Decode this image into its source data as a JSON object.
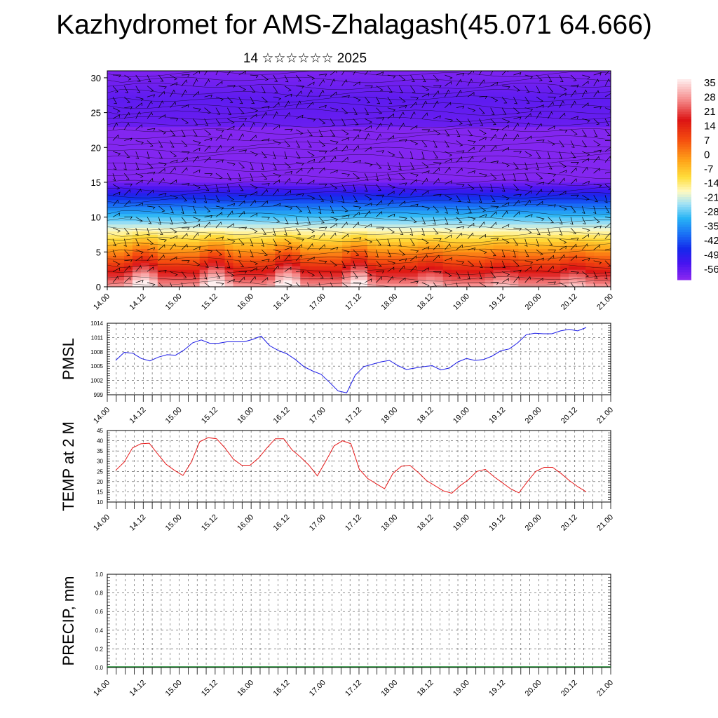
{
  "title": "Kazhydromet for AMS-Zhalagash(45.071 64.666)",
  "subtitle": "14 ☆☆☆☆☆☆ 2025",
  "time_ticks": [
    "14.00",
    "14.12",
    "15.00",
    "15.12",
    "16.00",
    "16.12",
    "17.00",
    "17.12",
    "18.00",
    "18.12",
    "19.00",
    "19.12",
    "20.00",
    "20.12",
    "21.00"
  ],
  "colors": {
    "pmsl_line": "#1a1ae6",
    "temp_line": "#e61a1a",
    "grid": "#000000"
  },
  "chart_data": [
    {
      "type": "heatmap",
      "name": "vertical temperature cross-section with wind barbs",
      "x_ticks": [
        "14.00",
        "14.12",
        "15.00",
        "15.12",
        "16.00",
        "16.12",
        "17.00",
        "17.12",
        "18.00",
        "18.12",
        "19.00",
        "19.12",
        "20.00",
        "20.12",
        "21.00"
      ],
      "y_ticks": [
        "0",
        "5",
        "10",
        "15",
        "20",
        "25",
        "30"
      ],
      "ylim": [
        0,
        31
      ],
      "colorbar_labels": [
        "35",
        "28",
        "21",
        "14",
        "7",
        "0",
        "-7",
        "-14",
        "-21",
        "-28",
        "-35",
        "-42",
        "-49",
        "-56"
      ],
      "colorbar_range": [
        -60,
        38
      ]
    },
    {
      "type": "line",
      "ylabel": "PMSL",
      "y_ticks": [
        "999",
        "1002",
        "1005",
        "1008",
        "1011",
        "1014"
      ],
      "ylim": [
        999,
        1014
      ],
      "x_ticks": [
        "14.00",
        "14.12",
        "15.00",
        "15.12",
        "16.00",
        "16.12",
        "17.00",
        "17.12",
        "18.00",
        "18.12",
        "19.00",
        "19.12",
        "20.00",
        "20.12",
        "21.00"
      ],
      "values": [
        1006.2,
        1007.9,
        1007.7,
        1006.6,
        1006.1,
        1006.9,
        1007.4,
        1007.3,
        1008.4,
        1009.9,
        1010.5,
        1009.8,
        1009.8,
        1010.1,
        1010.1,
        1010.1,
        1010.6,
        1011.3,
        1009.3,
        1008.3,
        1007.6,
        1006.4,
        1004.9,
        1004.0,
        1003.3,
        1001.6,
        999.8,
        999.4,
        1003.1,
        1004.9,
        1005.4,
        1005.9,
        1006.2,
        1005.1,
        1004.3,
        1004.6,
        1004.9,
        1005.1,
        1004.2,
        1004.6,
        1005.9,
        1006.6,
        1006.2,
        1006.4,
        1007.1,
        1008.2,
        1008.6,
        1009.9,
        1011.6,
        1011.9,
        1011.8,
        1011.8,
        1012.4,
        1012.7,
        1012.4,
        1013.1
      ]
    },
    {
      "type": "line",
      "ylabel": "TEMP at 2 M",
      "y_ticks": [
        "10",
        "15",
        "20",
        "25",
        "30",
        "35",
        "40",
        "45"
      ],
      "ylim": [
        10,
        45
      ],
      "x_ticks": [
        "14.00",
        "14.12",
        "15.00",
        "15.12",
        "16.00",
        "16.12",
        "17.00",
        "17.12",
        "18.00",
        "18.12",
        "19.00",
        "19.12",
        "20.00",
        "20.12",
        "21.00"
      ],
      "values": [
        25.5,
        29.5,
        36.5,
        38.5,
        38.8,
        33.5,
        28.5,
        25.5,
        23.0,
        29.5,
        39.5,
        41.5,
        41.0,
        36.5,
        31.0,
        28.0,
        28.0,
        31.5,
        36.5,
        41.0,
        41.0,
        35.5,
        32.0,
        28.0,
        22.8,
        30.0,
        37.5,
        40.0,
        38.5,
        26.0,
        21.5,
        19.0,
        16.5,
        24.0,
        27.5,
        28.0,
        24.5,
        20.5,
        18.0,
        15.5,
        14.3,
        18.0,
        21.0,
        25.0,
        26.0,
        22.5,
        19.5,
        16.5,
        14.5,
        20.0,
        25.0,
        27.0,
        27.0,
        24.0,
        20.5,
        17.5,
        15.0
      ]
    },
    {
      "type": "bar",
      "ylabel": "PRECIP, mm",
      "y_ticks": [
        "0.0",
        "0.2",
        "0.4",
        "0.6",
        "0.8",
        "1.0"
      ],
      "ylim": [
        0,
        1
      ],
      "x_ticks": [
        "14.00",
        "14.12",
        "15.00",
        "15.12",
        "16.00",
        "16.12",
        "17.00",
        "17.12",
        "18.00",
        "18.12",
        "19.00",
        "19.12",
        "20.00",
        "20.12",
        "21.00"
      ],
      "values": []
    }
  ]
}
